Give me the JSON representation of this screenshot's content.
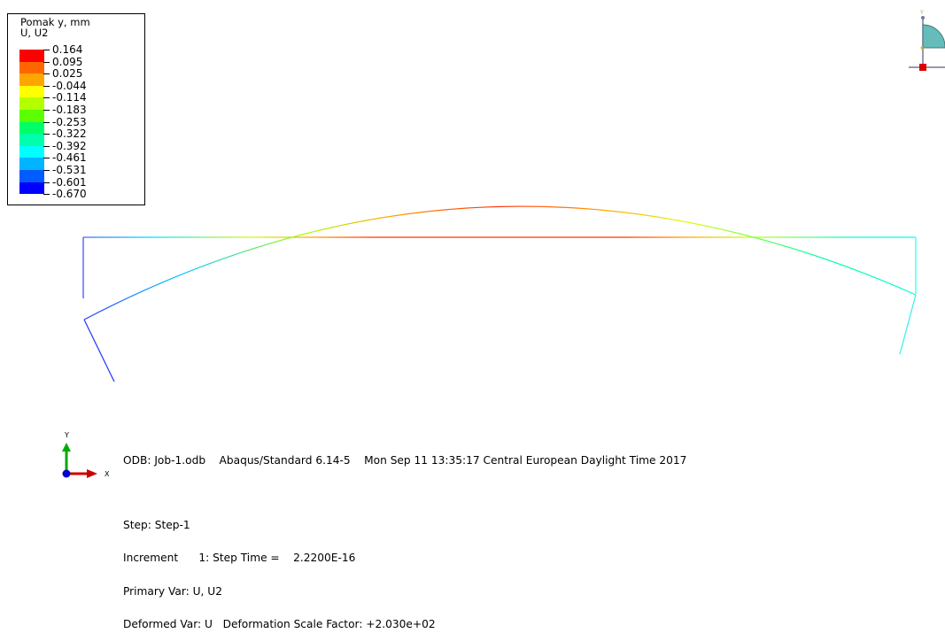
{
  "legend": {
    "title_line1": "Pomak y, mm",
    "title_line2": "U, U2",
    "values": [
      "0.164",
      "0.095",
      "0.025",
      "-0.044",
      "-0.114",
      "-0.183",
      "-0.253",
      "-0.322",
      "-0.392",
      "-0.461",
      "-0.531",
      "-0.601",
      "-0.670"
    ],
    "colors": [
      "#ff0000",
      "#ff6600",
      "#ffa500",
      "#ffff00",
      "#b3ff00",
      "#5cff00",
      "#00ff00",
      "#00ff66",
      "#00ffaa",
      "#00ffff",
      "#00b4ff",
      "#005cff",
      "#0000ff"
    ]
  },
  "info": {
    "line1": "ODB: Job-1.odb    Abaqus/Standard 6.14-5    Mon Sep 11 13:35:17 Central European Daylight Time 2017",
    "line2": "Step: Step-1",
    "line3": "Increment      1: Step Time =    2.2200E-16",
    "line4": "Primary Var: U, U2",
    "line5": "Deformed Var: U   Deformation Scale Factor: +2.030e+02"
  },
  "triad": {
    "y_label": "Y",
    "x_label": "X",
    "y_color": "#00aa00",
    "x_color": "#cc0000",
    "origin_color": "#0000cc"
  },
  "view_cube": {
    "y_label": "Y",
    "fill_color": "#66bbbb"
  },
  "model": {
    "undeformed_color": "#ff0000",
    "deformed_colors": [
      "#0000ff",
      "#00ffff",
      "#ffff00",
      "#ff0000",
      "#ffff00",
      "#00ff66",
      "#00ffff"
    ]
  }
}
